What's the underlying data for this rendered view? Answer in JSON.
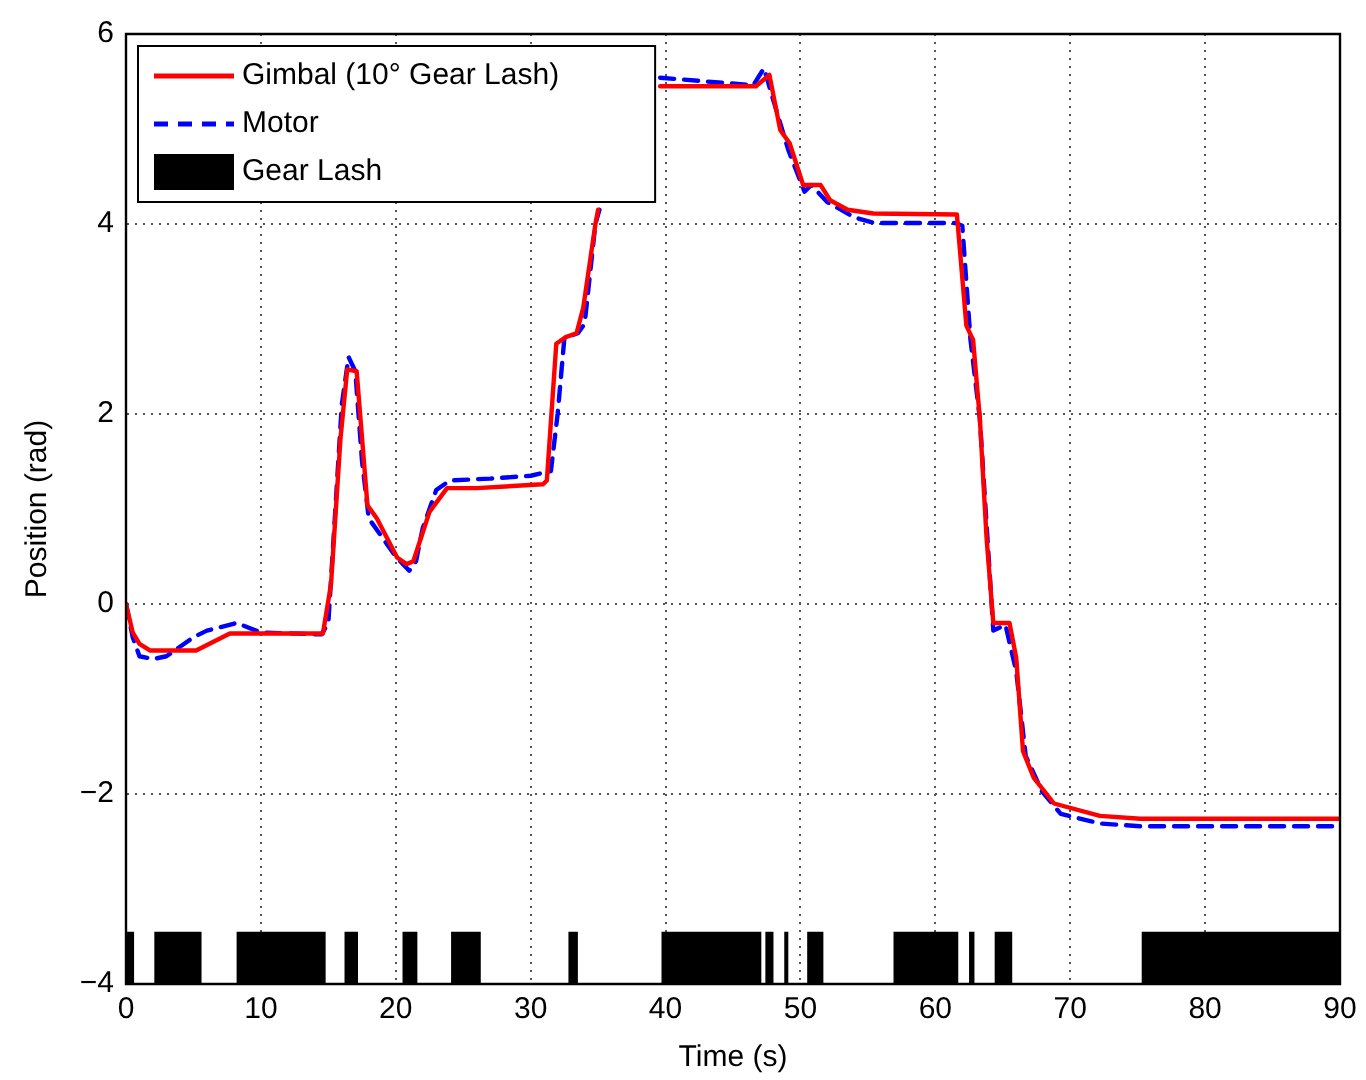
{
  "chart_data": {
    "type": "line",
    "xlabel": "Time (s)",
    "ylabel": "Position (rad)",
    "xlim": [
      0,
      90
    ],
    "xticks": [
      0,
      10,
      20,
      30,
      40,
      50,
      60,
      70,
      80,
      90
    ],
    "ylim": [
      -4,
      6
    ],
    "yticks": [
      -4,
      -2,
      0,
      2,
      4,
      6
    ],
    "grid": true,
    "legend": "top left",
    "series": [
      {
        "name": "Gimbal (10° Gear Lash)",
        "color": "#ff0000",
        "line_style": "solid",
        "x": [
          0,
          0.5,
          1,
          1.8,
          5.2,
          7.7,
          14.6,
          15.2,
          15.9,
          16.4,
          17.1,
          17.9,
          18.6,
          20.1,
          20.8,
          21.3,
          22.5,
          23.8,
          26,
          30.9,
          31.2,
          31.9,
          32.6,
          33.4,
          33.9,
          34.8,
          35,
          37.5,
          39.6,
          46.7,
          47.7,
          48.5,
          49.2,
          50.2,
          51.5,
          52.2,
          53.5,
          55.4,
          61.6,
          62.3,
          62.8,
          63.3,
          63.8,
          64.3,
          65.5,
          66,
          66.5,
          67.3,
          68.8,
          72.2,
          75.2,
          90
        ],
        "values": [
          0,
          -0.3,
          -0.42,
          -0.49,
          -0.49,
          -0.31,
          -0.31,
          0.21,
          1.74,
          2.47,
          2.45,
          1.04,
          0.9,
          0.49,
          0.42,
          0.45,
          0.97,
          1.22,
          1.22,
          1.26,
          1.3,
          2.74,
          2.81,
          2.85,
          3.12,
          4,
          4.15,
          null,
          5.45,
          5.45,
          5.57,
          4.99,
          4.85,
          4.41,
          4.41,
          4.25,
          4.15,
          4.11,
          4.1,
          2.93,
          2.78,
          1.95,
          0.69,
          -0.2,
          -0.2,
          -0.57,
          -1.55,
          -1.83,
          -2.1,
          -2.23,
          -2.26,
          -2.26
        ]
      },
      {
        "name": "Motor",
        "color": "#0000ff",
        "line_style": "dashed",
        "x": [
          0,
          0.5,
          1,
          2,
          3,
          4,
          5,
          6,
          8.2,
          10,
          14.5,
          15,
          16,
          16.5,
          17,
          17.5,
          18,
          20,
          21,
          21.5,
          22,
          23,
          24,
          27,
          30,
          31.5,
          32,
          32.5,
          33.5,
          34,
          34.8,
          35.1,
          37.5,
          39.6,
          46.5,
          47.3,
          48.1,
          49.1,
          50.3,
          50.8,
          52,
          54,
          55.5,
          61.5,
          62,
          62.6,
          63.3,
          64.3,
          65.2,
          66,
          66.7,
          67.9,
          69.3,
          72.2,
          75.2,
          90
        ],
        "values": [
          0,
          -0.35,
          -0.55,
          -0.58,
          -0.55,
          -0.45,
          -0.35,
          -0.28,
          -0.2,
          -0.3,
          -0.32,
          -0.2,
          2.1,
          2.6,
          2.45,
          1.5,
          0.9,
          0.5,
          0.35,
          0.45,
          0.8,
          1.2,
          1.3,
          1.32,
          1.35,
          1.4,
          2,
          2.8,
          2.85,
          2.95,
          4,
          4.15,
          null,
          5.54,
          5.46,
          5.64,
          5.25,
          4.78,
          4.34,
          4.41,
          4.23,
          4.07,
          4.01,
          4.01,
          3.98,
          2.79,
          1.95,
          -0.28,
          -0.22,
          -0.71,
          -1.6,
          -1.97,
          -2.21,
          -2.31,
          -2.34,
          -2.34
        ]
      },
      {
        "name": "Gear Lash",
        "type": "area",
        "color": "#000000",
        "x": [
          0,
          0,
          0,
          0.6,
          0.6,
          2.1,
          2.1,
          5.6,
          5.6,
          8.2,
          8.2,
          14.8,
          14.8,
          16.2,
          16.2,
          17.2,
          17.2,
          20.5,
          20.5,
          21.6,
          21.6,
          24.1,
          24.1,
          26.3,
          26.3,
          32.8,
          32.8,
          33.5,
          33.5,
          39.7,
          39.7,
          47.1,
          47.1,
          47.4,
          47.4,
          48,
          48,
          48.8,
          48.8,
          49.1,
          49.1,
          50.5,
          50.5,
          51.7,
          51.7,
          56.9,
          56.9,
          61.7,
          61.7,
          62.5,
          62.5,
          62.9,
          62.9,
          64.4,
          64.4,
          65.7,
          65.7,
          75.3,
          75.3,
          90,
          90
        ],
        "values": [
          -4,
          -3.45,
          -3.45,
          -3.45,
          -4,
          -4,
          -3.45,
          -3.45,
          -4,
          -4,
          -3.45,
          -3.45,
          -4,
          -4,
          -3.45,
          -3.45,
          -4,
          -4,
          -3.45,
          -3.45,
          -4,
          -4,
          -3.45,
          -3.45,
          -4,
          -4,
          -3.45,
          -3.45,
          -4,
          -4,
          -3.45,
          -3.45,
          -4,
          -4,
          -3.45,
          -3.45,
          -4,
          -4,
          -3.45,
          -3.45,
          -4,
          -4,
          -3.45,
          -3.45,
          -4,
          -4,
          -3.45,
          -3.45,
          -4,
          -4,
          -3.45,
          -3.45,
          -4,
          -4,
          -3.45,
          -3.45,
          -4,
          -4,
          -3.45,
          -3.45,
          -4
        ]
      }
    ]
  }
}
